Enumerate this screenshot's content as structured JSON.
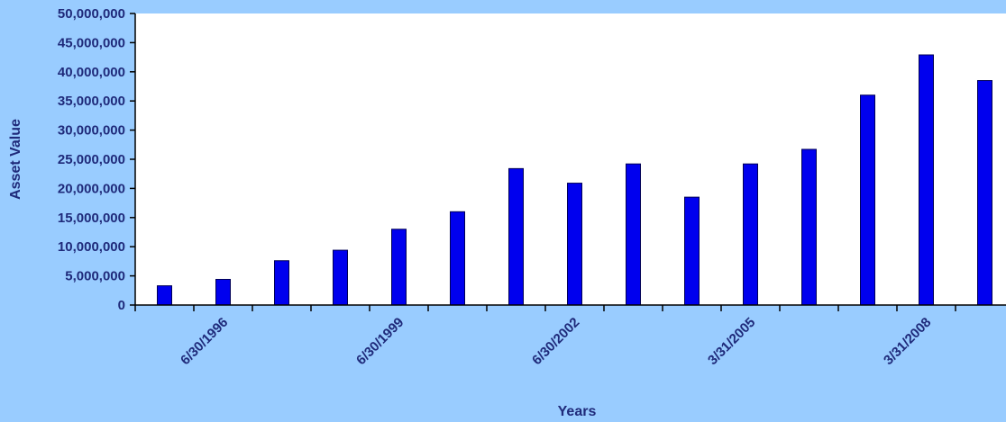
{
  "chart_data": {
    "type": "bar",
    "title": "",
    "xlabel": "Years",
    "ylabel": "Asset Value",
    "ylim": [
      0,
      50000000
    ],
    "y_ticks": [
      0,
      5000000,
      10000000,
      15000000,
      20000000,
      25000000,
      30000000,
      35000000,
      40000000,
      45000000,
      50000000
    ],
    "y_tick_labels": [
      "0",
      "5,000,000",
      "10,000,000",
      "15,000,000",
      "20,000,000",
      "25,000,000",
      "30,000,000",
      "35,000,000",
      "40,000,000",
      "45,000,000",
      "50,000,000"
    ],
    "x_tick_labels": [
      "6/30/1996",
      "6/30/1999",
      "6/30/2002",
      "3/31/2005",
      "3/31/2008"
    ],
    "x_tick_label_bar_index": [
      1,
      4,
      7,
      10,
      13
    ],
    "values": [
      3300000,
      4400000,
      7600000,
      9400000,
      13000000,
      16000000,
      23400000,
      20900000,
      24200000,
      18500000,
      24200000,
      26700000,
      36000000,
      42900000,
      38500000
    ],
    "legend": "none",
    "grid": false
  },
  "colors": {
    "background": "#99ccff",
    "plot_area": "#ffffff",
    "bar_fill": "#0000ee",
    "bar_stroke": "#000055",
    "text": "#1f2a7a",
    "axis": "#000000"
  }
}
